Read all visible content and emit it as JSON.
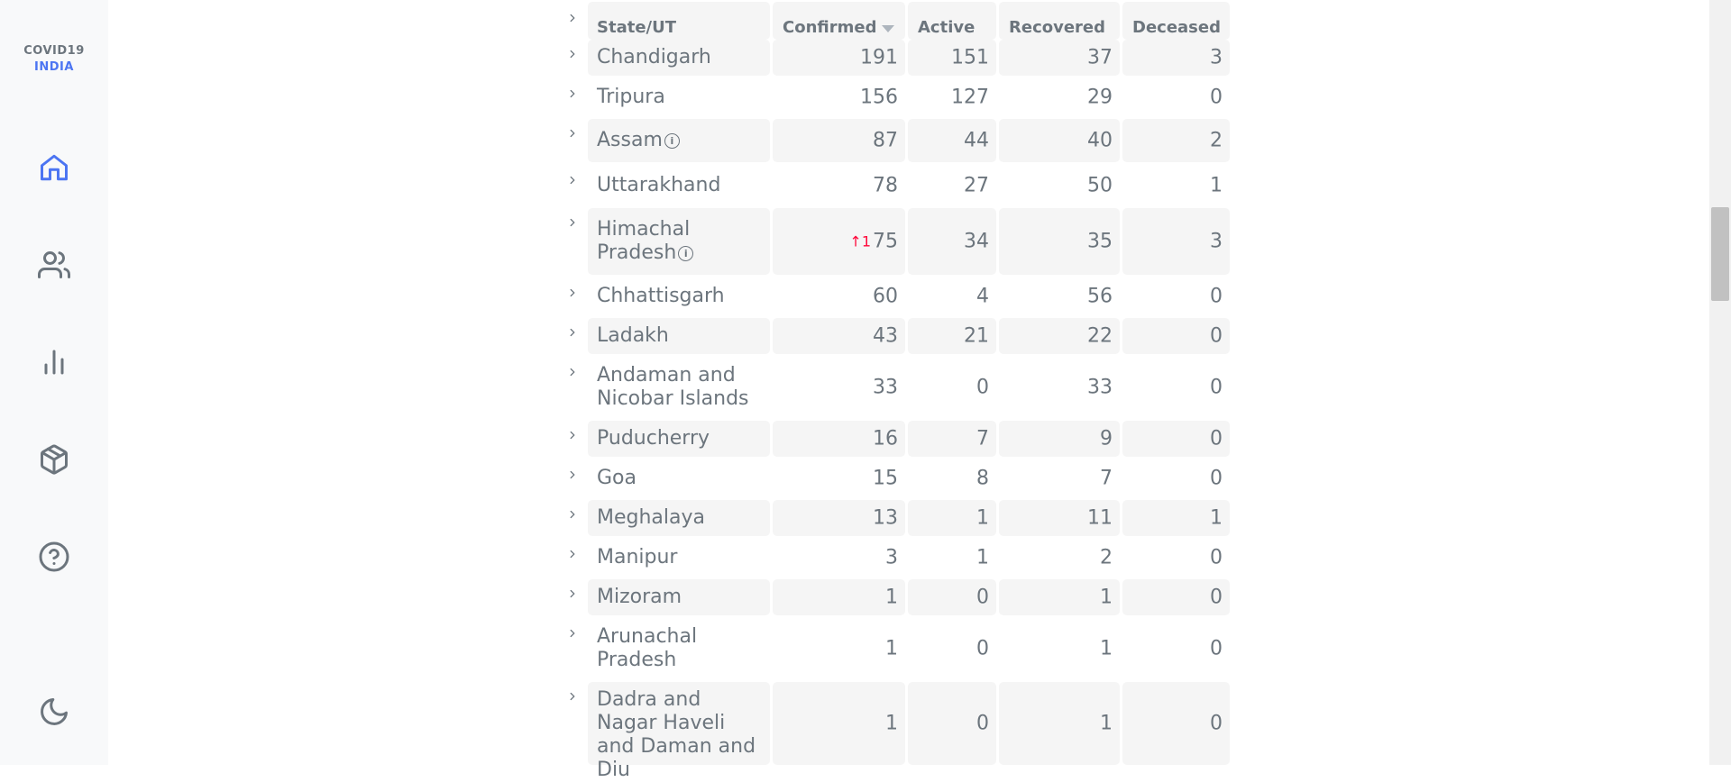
{
  "app": {
    "logo_line1": "COVID19",
    "logo_line2": "INDIA"
  },
  "nav": [
    {
      "name": "home",
      "icon": "home-icon",
      "active": true
    },
    {
      "name": "volunteers",
      "icon": "users-icon"
    },
    {
      "name": "statistics",
      "icon": "bar-chart-icon"
    },
    {
      "name": "resources",
      "icon": "package-icon"
    },
    {
      "name": "faq",
      "icon": "help-circle-icon"
    },
    {
      "name": "dark-mode",
      "icon": "moon-icon"
    }
  ],
  "table": {
    "headers": {
      "state": "State/UT",
      "confirmed": "Confirmed",
      "active": "Active",
      "recovered": "Recovered",
      "deceased": "Deceased"
    },
    "sort_column": "confirmed",
    "rows": [
      {
        "state": "Chandigarh",
        "confirmed": "191",
        "active": "151",
        "recovered": "37",
        "deceased": "3",
        "info": false,
        "delta": ""
      },
      {
        "state": "Tripura",
        "confirmed": "156",
        "active": "127",
        "recovered": "29",
        "deceased": "0",
        "info": false,
        "delta": ""
      },
      {
        "state": "Assam",
        "confirmed": "87",
        "active": "44",
        "recovered": "40",
        "deceased": "2",
        "info": true,
        "delta": ""
      },
      {
        "state": "Uttarakhand",
        "confirmed": "78",
        "active": "27",
        "recovered": "50",
        "deceased": "1",
        "info": false,
        "delta": ""
      },
      {
        "state": "Himachal Pradesh",
        "confirmed": "75",
        "active": "34",
        "recovered": "35",
        "deceased": "3",
        "info": true,
        "delta": "↑1"
      },
      {
        "state": "Chhattisgarh",
        "confirmed": "60",
        "active": "4",
        "recovered": "56",
        "deceased": "0",
        "info": false,
        "delta": ""
      },
      {
        "state": "Ladakh",
        "confirmed": "43",
        "active": "21",
        "recovered": "22",
        "deceased": "0",
        "info": false,
        "delta": ""
      },
      {
        "state": "Andaman and Nicobar Islands",
        "confirmed": "33",
        "active": "0",
        "recovered": "33",
        "deceased": "0",
        "info": false,
        "delta": ""
      },
      {
        "state": "Puducherry",
        "confirmed": "16",
        "active": "7",
        "recovered": "9",
        "deceased": "0",
        "info": false,
        "delta": ""
      },
      {
        "state": "Goa",
        "confirmed": "15",
        "active": "8",
        "recovered": "7",
        "deceased": "0",
        "info": false,
        "delta": ""
      },
      {
        "state": "Meghalaya",
        "confirmed": "13",
        "active": "1",
        "recovered": "11",
        "deceased": "1",
        "info": false,
        "delta": ""
      },
      {
        "state": "Manipur",
        "confirmed": "3",
        "active": "1",
        "recovered": "2",
        "deceased": "0",
        "info": false,
        "delta": ""
      },
      {
        "state": "Mizoram",
        "confirmed": "1",
        "active": "0",
        "recovered": "1",
        "deceased": "0",
        "info": false,
        "delta": ""
      },
      {
        "state": "Arunachal Pradesh",
        "confirmed": "1",
        "active": "0",
        "recovered": "1",
        "deceased": "0",
        "info": false,
        "delta": ""
      },
      {
        "state": "Dadra and Nagar Haveli and Daman and Diu",
        "confirmed": "1",
        "active": "0",
        "recovered": "1",
        "deceased": "0",
        "info": false,
        "delta": ""
      }
    ]
  }
}
